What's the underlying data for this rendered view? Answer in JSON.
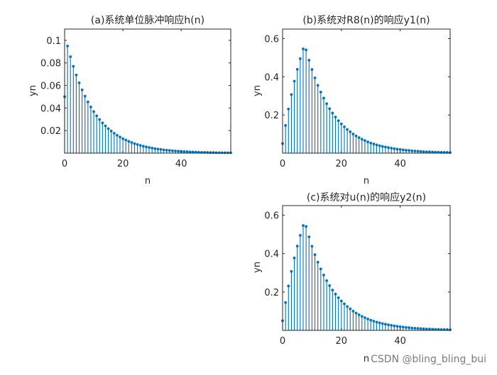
{
  "chart_data": [
    {
      "type": "stem",
      "title": "(a)系统单位脉冲响应h(n)",
      "xlabel": "n",
      "ylabel": "yn",
      "xlim": [
        0,
        57
      ],
      "ylim": [
        0,
        0.11
      ],
      "xticks": [
        0,
        20,
        40
      ],
      "yticks": [
        0.02,
        0.04,
        0.06,
        0.08,
        0.1
      ],
      "ytick_labels": [
        "0.02",
        "0.04",
        "0.06",
        "0.08",
        "0.1"
      ],
      "x": [
        0,
        1,
        2,
        3,
        4,
        5,
        6,
        7,
        8,
        9,
        10,
        11,
        12,
        13,
        14,
        15,
        16,
        17,
        18,
        19,
        20,
        21,
        22,
        23,
        24,
        25,
        26,
        27,
        28,
        29,
        30,
        31,
        32,
        33,
        34,
        35,
        36,
        37,
        38,
        39,
        40,
        41,
        42,
        43,
        44,
        45,
        46,
        47,
        48,
        49,
        50,
        51,
        52,
        53,
        54,
        55,
        56,
        57
      ],
      "y": [
        0.05,
        0.095,
        0.0855,
        0.077,
        0.0693,
        0.0623,
        0.0561,
        0.0505,
        0.0454,
        0.0409,
        0.0368,
        0.0331,
        0.0298,
        0.0268,
        0.0241,
        0.0217,
        0.0196,
        0.0176,
        0.0158,
        0.0143,
        0.0128,
        0.0116,
        0.0104,
        0.0094,
        0.0084,
        0.0076,
        0.0068,
        0.0061,
        0.0055,
        0.005,
        0.0045,
        0.004,
        0.0036,
        0.0033,
        0.0029,
        0.0026,
        0.0024,
        0.0021,
        0.0019,
        0.0017,
        0.0016,
        0.0014,
        0.0013,
        0.0011,
        0.001,
        0.0009,
        0.0008,
        0.0007,
        0.0007,
        0.0006,
        0.0005,
        0.0005,
        0.0004,
        0.0004,
        0.0004,
        0.0003,
        0.0003,
        0.0003
      ]
    },
    {
      "type": "stem",
      "title": "(b)系统对R8(n)的响应y1(n)",
      "xlabel": "n",
      "ylabel": "yn",
      "xlim": [
        0,
        57
      ],
      "ylim": [
        0,
        0.65
      ],
      "xticks": [
        0,
        20,
        40
      ],
      "yticks": [
        0.2,
        0.4,
        0.6
      ],
      "ytick_labels": [
        "0.2",
        "0.4",
        "0.6"
      ],
      "x": [
        0,
        1,
        2,
        3,
        4,
        5,
        6,
        7,
        8,
        9,
        10,
        11,
        12,
        13,
        14,
        15,
        16,
        17,
        18,
        19,
        20,
        21,
        22,
        23,
        24,
        25,
        26,
        27,
        28,
        29,
        30,
        31,
        32,
        33,
        34,
        35,
        36,
        37,
        38,
        39,
        40,
        41,
        42,
        43,
        44,
        45,
        46,
        47,
        48,
        49,
        50,
        51,
        52,
        53,
        54,
        55,
        56,
        57
      ],
      "y": [
        0.05,
        0.145,
        0.231,
        0.307,
        0.377,
        0.439,
        0.495,
        0.546,
        0.541,
        0.487,
        0.438,
        0.394,
        0.355,
        0.32,
        0.288,
        0.259,
        0.233,
        0.21,
        0.189,
        0.17,
        0.153,
        0.138,
        0.124,
        0.112,
        0.1,
        0.09,
        0.081,
        0.073,
        0.066,
        0.059,
        0.053,
        0.048,
        0.043,
        0.039,
        0.035,
        0.032,
        0.029,
        0.026,
        0.023,
        0.021,
        0.019,
        0.017,
        0.015,
        0.014,
        0.012,
        0.011,
        0.01,
        0.009,
        0.008,
        0.007,
        0.007,
        0.006,
        0.005,
        0.005,
        0.004,
        0.004,
        0.004,
        0.003
      ]
    },
    {
      "type": "stem",
      "title": "(c)系统对u(n)的响应y2(n)",
      "xlabel": "n",
      "ylabel": "yn",
      "xlim": [
        0,
        57
      ],
      "ylim": [
        0,
        0.65
      ],
      "xticks": [
        0,
        20,
        40
      ],
      "yticks": [
        0.2,
        0.4,
        0.6
      ],
      "ytick_labels": [
        "0.2",
        "0.4",
        "0.6"
      ],
      "x": [
        0,
        1,
        2,
        3,
        4,
        5,
        6,
        7,
        8,
        9,
        10,
        11,
        12,
        13,
        14,
        15,
        16,
        17,
        18,
        19,
        20,
        21,
        22,
        23,
        24,
        25,
        26,
        27,
        28,
        29,
        30,
        31,
        32,
        33,
        34,
        35,
        36,
        37,
        38,
        39,
        40,
        41,
        42,
        43,
        44,
        45,
        46,
        47,
        48,
        49,
        50,
        51,
        52,
        53,
        54,
        55,
        56,
        57
      ],
      "y": [
        0.05,
        0.145,
        0.231,
        0.307,
        0.377,
        0.439,
        0.495,
        0.546,
        0.541,
        0.487,
        0.438,
        0.394,
        0.355,
        0.32,
        0.288,
        0.259,
        0.233,
        0.21,
        0.189,
        0.17,
        0.153,
        0.138,
        0.124,
        0.112,
        0.1,
        0.09,
        0.081,
        0.073,
        0.066,
        0.059,
        0.053,
        0.048,
        0.043,
        0.039,
        0.035,
        0.032,
        0.029,
        0.026,
        0.023,
        0.021,
        0.019,
        0.017,
        0.015,
        0.014,
        0.012,
        0.011,
        0.01,
        0.009,
        0.008,
        0.007,
        0.007,
        0.006,
        0.005,
        0.005,
        0.004,
        0.004,
        0.004,
        0.003
      ]
    }
  ],
  "colors": {
    "stem": "#0072bd",
    "axis": "#262626"
  },
  "watermark": "CSDN @bling_bling_bui"
}
